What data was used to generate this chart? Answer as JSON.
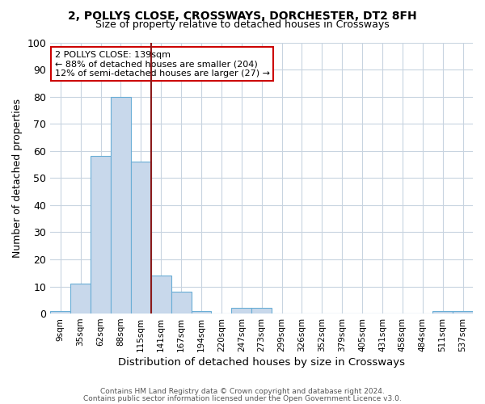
{
  "title1": "2, POLLYS CLOSE, CROSSWAYS, DORCHESTER, DT2 8FH",
  "title2": "Size of property relative to detached houses in Crossways",
  "xlabel": "Distribution of detached houses by size in Crossways",
  "ylabel": "Number of detached properties",
  "bin_labels": [
    "9sqm",
    "35sqm",
    "62sqm",
    "88sqm",
    "115sqm",
    "141sqm",
    "167sqm",
    "194sqm",
    "220sqm",
    "247sqm",
    "273sqm",
    "299sqm",
    "326sqm",
    "352sqm",
    "379sqm",
    "405sqm",
    "431sqm",
    "458sqm",
    "484sqm",
    "511sqm",
    "537sqm"
  ],
  "bar_heights": [
    1,
    11,
    58,
    80,
    56,
    14,
    8,
    1,
    0,
    2,
    2,
    0,
    0,
    0,
    0,
    0,
    0,
    0,
    0,
    1,
    1
  ],
  "bar_color": "#c8d8eb",
  "bar_edge_color": "#6aaed6",
  "vline_position": 4.5,
  "vline_color": "#8b1a1a",
  "annotation_line1": "2 POLLYS CLOSE: 139sqm",
  "annotation_line2": "← 88% of detached houses are smaller (204)",
  "annotation_line3": "12% of semi-detached houses are larger (27) →",
  "annotation_box_edge_color": "#cc0000",
  "ylim": [
    0,
    100
  ],
  "yticks": [
    0,
    10,
    20,
    30,
    40,
    50,
    60,
    70,
    80,
    90,
    100
  ],
  "footer1": "Contains HM Land Registry data © Crown copyright and database right 2024.",
  "footer2": "Contains public sector information licensed under the Open Government Licence v3.0.",
  "bg_color": "#ffffff",
  "grid_color": "#c8d4e0"
}
